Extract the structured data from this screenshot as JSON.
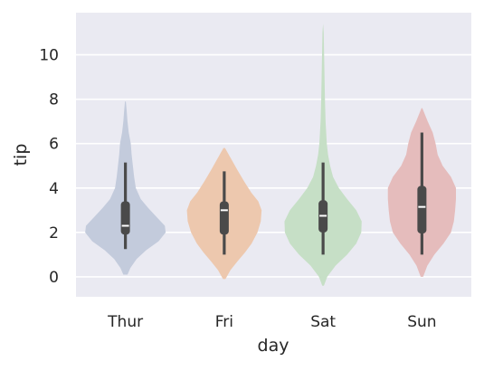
{
  "chart_data": {
    "type": "violin",
    "xlabel": "day",
    "ylabel": "tip",
    "categories": [
      "Thur",
      "Fri",
      "Sat",
      "Sun"
    ],
    "ylim": [
      -0.9,
      11.9
    ],
    "yticks": [
      0,
      2,
      4,
      6,
      8,
      10
    ],
    "grid": true,
    "legend": "none",
    "colors": {
      "plot_background": "#eaeaf2",
      "grid": "#ffffff",
      "box": "#4a4a4a",
      "median": "#ffffff"
    },
    "violins": [
      {
        "category": "Thur",
        "color": "#c3cbdc",
        "kde_range": [
          0.1,
          7.9
        ],
        "box": {
          "q1": 1.9,
          "median": 2.3,
          "q3": 3.4,
          "whisker_low": 1.25,
          "whisker_high": 5.15
        },
        "density": [
          [
            0.1,
            0.05
          ],
          [
            0.4,
            0.12
          ],
          [
            0.8,
            0.27
          ],
          [
            1.2,
            0.5
          ],
          [
            1.6,
            0.8
          ],
          [
            2.0,
            0.97
          ],
          [
            2.3,
            0.95
          ],
          [
            2.7,
            0.75
          ],
          [
            3.1,
            0.55
          ],
          [
            3.5,
            0.37
          ],
          [
            4.0,
            0.25
          ],
          [
            4.5,
            0.21
          ],
          [
            5.0,
            0.18
          ],
          [
            5.5,
            0.15
          ],
          [
            6.0,
            0.13
          ],
          [
            6.5,
            0.08
          ],
          [
            7.0,
            0.05
          ],
          [
            7.5,
            0.03
          ],
          [
            7.9,
            0.01
          ]
        ]
      },
      {
        "category": "Fri",
        "color": "#edc8ae",
        "kde_range": [
          -0.1,
          5.8
        ],
        "box": {
          "q1": 1.9,
          "median": 3.0,
          "q3": 3.4,
          "whisker_low": 1.0,
          "whisker_high": 4.75
        },
        "density": [
          [
            -0.1,
            0.03
          ],
          [
            0.3,
            0.15
          ],
          [
            0.7,
            0.32
          ],
          [
            1.1,
            0.5
          ],
          [
            1.5,
            0.66
          ],
          [
            2.0,
            0.8
          ],
          [
            2.5,
            0.88
          ],
          [
            3.0,
            0.9
          ],
          [
            3.4,
            0.82
          ],
          [
            3.8,
            0.65
          ],
          [
            4.3,
            0.48
          ],
          [
            4.8,
            0.32
          ],
          [
            5.3,
            0.17
          ],
          [
            5.8,
            0.02
          ]
        ]
      },
      {
        "category": "Sat",
        "color": "#c6dfc6",
        "kde_range": [
          -0.4,
          11.4
        ],
        "box": {
          "q1": 2.0,
          "median": 2.75,
          "q3": 3.45,
          "whisker_low": 1.0,
          "whisker_high": 5.15
        },
        "density": [
          [
            -0.4,
            0.02
          ],
          [
            0.0,
            0.1
          ],
          [
            0.5,
            0.3
          ],
          [
            1.0,
            0.58
          ],
          [
            1.5,
            0.8
          ],
          [
            2.0,
            0.92
          ],
          [
            2.5,
            0.93
          ],
          [
            3.0,
            0.8
          ],
          [
            3.5,
            0.58
          ],
          [
            4.0,
            0.38
          ],
          [
            4.5,
            0.24
          ],
          [
            5.0,
            0.17
          ],
          [
            5.5,
            0.12
          ],
          [
            6.0,
            0.09
          ],
          [
            7.0,
            0.06
          ],
          [
            8.0,
            0.045
          ],
          [
            9.0,
            0.035
          ],
          [
            10.0,
            0.025
          ],
          [
            11.0,
            0.015
          ],
          [
            11.4,
            0.0
          ]
        ]
      },
      {
        "category": "Sun",
        "color": "#e5bcbc",
        "kde_range": [
          0.0,
          7.6
        ],
        "box": {
          "q1": 1.95,
          "median": 3.15,
          "q3": 4.1,
          "whisker_low": 1.0,
          "whisker_high": 6.5
        },
        "density": [
          [
            0.0,
            0.03
          ],
          [
            0.5,
            0.13
          ],
          [
            1.0,
            0.3
          ],
          [
            1.5,
            0.52
          ],
          [
            2.0,
            0.7
          ],
          [
            2.5,
            0.77
          ],
          [
            3.0,
            0.8
          ],
          [
            3.5,
            0.82
          ],
          [
            4.0,
            0.82
          ],
          [
            4.5,
            0.7
          ],
          [
            5.0,
            0.5
          ],
          [
            5.5,
            0.38
          ],
          [
            6.0,
            0.33
          ],
          [
            6.5,
            0.26
          ],
          [
            7.0,
            0.14
          ],
          [
            7.6,
            0.01
          ]
        ]
      }
    ]
  }
}
